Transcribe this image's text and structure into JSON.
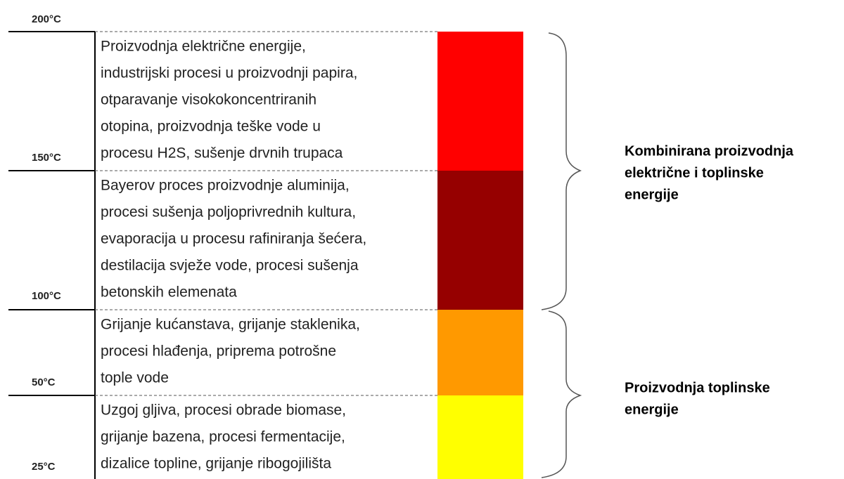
{
  "temperatures": [
    "200°C",
    "150°C",
    "100°C",
    "50°C",
    "25°C"
  ],
  "rows": [
    {
      "color": "#ff0000",
      "lines": [
        "Proizvodnja električne energije,",
        "industrijski procesi u proizvodnji papira,",
        "otparavanje visokokoncentriranih",
        "otopina, proizvodnja teške vode u",
        "procesu H2S, sušenje drvnih trupaca"
      ]
    },
    {
      "color": "#960000",
      "lines": [
        "Bayerov proces proizvodnje aluminija,",
        "procesi sušenja poljoprivrednih kultura,",
        "evaporacija u procesu rafiniranja šećera,",
        "destilacija svježe vode, procesi sušenja",
        "betonskih elemenata"
      ]
    },
    {
      "color": "#ff9900",
      "lines": [
        "Grijanje kućanstava, grijanje staklenika,",
        "procesi hlađenja, priprema potrošne",
        "tople vode"
      ]
    },
    {
      "color": "#ffff00",
      "lines": [
        "Uzgoj gljiva, procesi obrade biomase,",
        "grijanje bazena, procesi fermentacije,",
        "dizalice topline, grijanje ribogojilišta"
      ]
    }
  ],
  "groups": [
    {
      "lines": [
        "Kombinirana proizvodnja",
        "električne i toplinske",
        "energije"
      ]
    },
    {
      "lines": [
        "Proizvodnja toplinske",
        "energije"
      ]
    }
  ]
}
